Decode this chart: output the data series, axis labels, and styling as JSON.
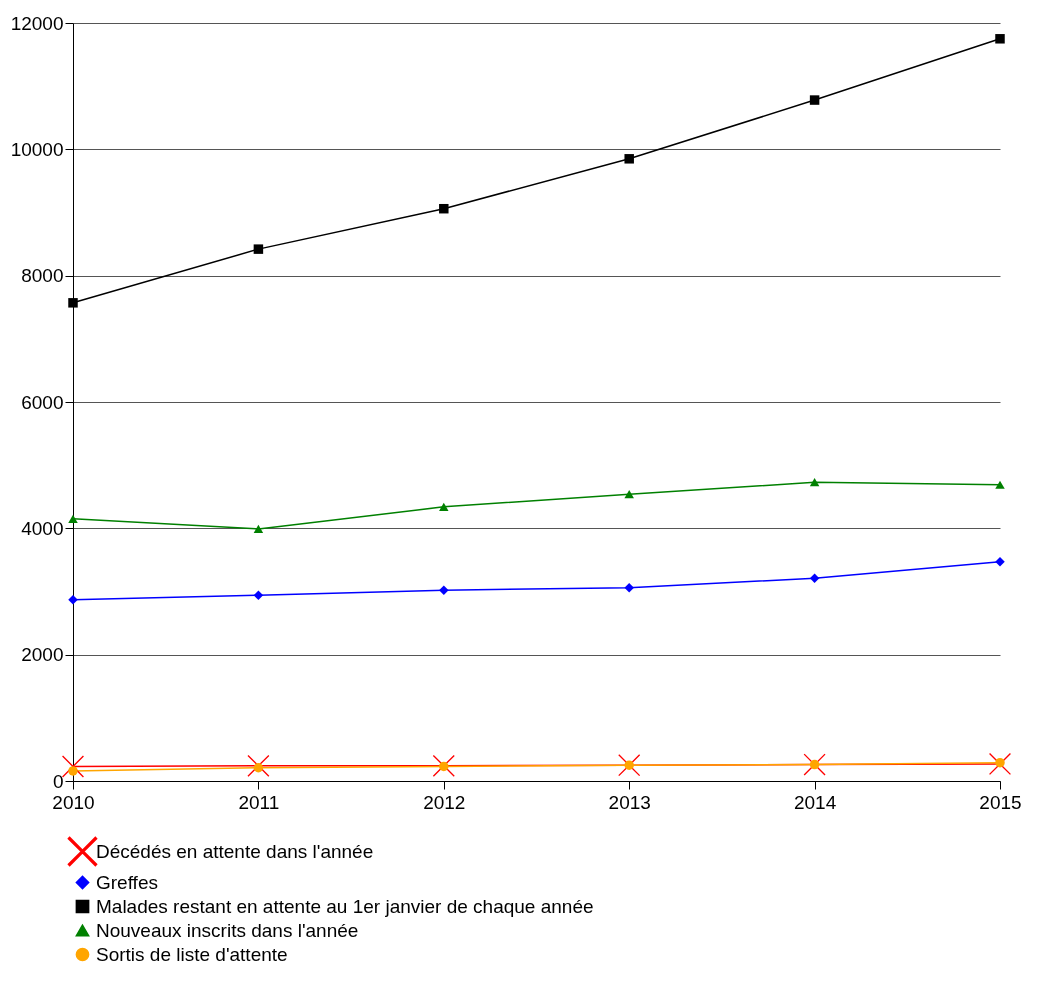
{
  "chart_data": {
    "type": "line",
    "x": [
      2010,
      2011,
      2012,
      2013,
      2014,
      2015
    ],
    "xlim": [
      2010,
      2015
    ],
    "xticks": [
      2010,
      2011,
      2012,
      2013,
      2014,
      2015
    ],
    "ylim": [
      0,
      12000
    ],
    "yticks": [
      0,
      2000,
      4000,
      6000,
      8000,
      10000,
      12000
    ],
    "grid": "y",
    "legend": "bottom",
    "line_style": "solid",
    "series": [
      {
        "name": "Décédés en attente dans l'année",
        "color": "#ff0000",
        "marker": "cross",
        "values": [
          230,
          240,
          240,
          250,
          260,
          270
        ]
      },
      {
        "name": "Greffes",
        "color": "#0000ff",
        "marker": "diamond",
        "values": [
          2870,
          2940,
          3020,
          3060,
          3210,
          3470
        ]
      },
      {
        "name": "Malades restant en attente au 1er janvier de chaque année",
        "color": "#000000",
        "marker": "square",
        "values": [
          7570,
          8420,
          9060,
          9850,
          10780,
          11750
        ]
      },
      {
        "name": "Nouveaux inscrits dans l'année",
        "color": "#008000",
        "marker": "triangle",
        "values": [
          4150,
          3990,
          4340,
          4540,
          4730,
          4690
        ]
      },
      {
        "name": "Sortis de liste d'attente",
        "color": "#ffa500",
        "marker": "circle",
        "values": [
          160,
          210,
          230,
          250,
          260,
          290
        ]
      }
    ]
  }
}
